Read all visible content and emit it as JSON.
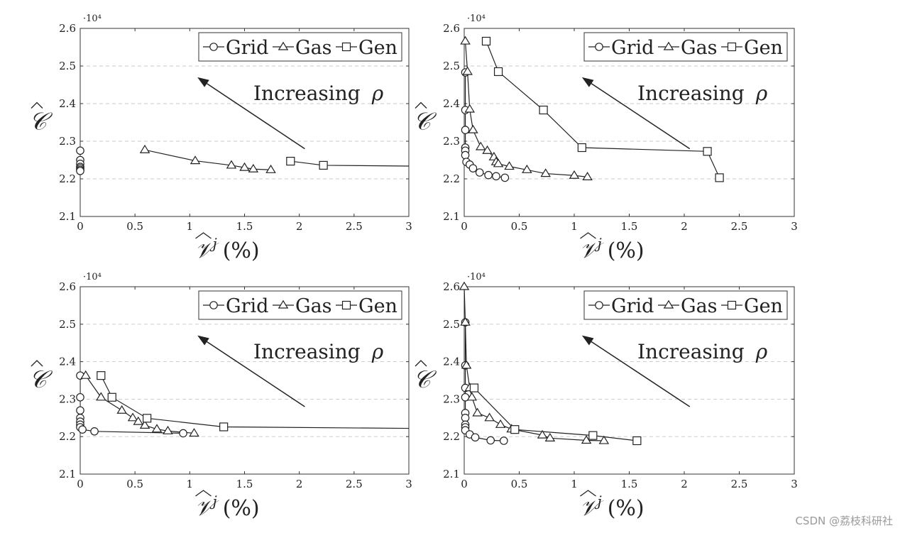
{
  "chart_data": [
    {
      "type": "line",
      "xlim": [
        0,
        3
      ],
      "ylim": [
        2.1,
        2.6
      ],
      "xticks": [
        "0",
        "0.5",
        "1",
        "1.5",
        "2",
        "2.5",
        "3"
      ],
      "yticks": [
        "2.1",
        "2.2",
        "2.3",
        "2.4",
        "2.5",
        "2.6"
      ],
      "ymult": "·10⁴",
      "ylabel": "𝒞",
      "xlabel_sym": "𝒱",
      "xlabel_sup": "j",
      "xlabel_unit": "(%)",
      "grid": "horizontal-dashed",
      "legend": [
        {
          "name": "Grid",
          "marker": "circle"
        },
        {
          "name": "Gas",
          "marker": "triangle"
        },
        {
          "name": "Gen",
          "marker": "square"
        }
      ],
      "annotation": {
        "text": "Increasing",
        "symbol": "ρ",
        "arrow_from": [
          2.05,
          2.28
        ],
        "arrow_to": [
          1.07,
          2.47
        ]
      },
      "series": [
        {
          "name": "Grid",
          "marker": "circle",
          "line": false,
          "points": [
            [
              0,
              2.275
            ],
            [
              0,
              2.25
            ],
            [
              0,
              2.24
            ],
            [
              0,
              2.232
            ],
            [
              0,
              2.228
            ],
            [
              0,
              2.224
            ],
            [
              0,
              2.221
            ]
          ]
        },
        {
          "name": "Gas",
          "marker": "triangle",
          "line": true,
          "points": [
            [
              0.59,
              2.277
            ],
            [
              1.05,
              2.248
            ],
            [
              1.38,
              2.236
            ],
            [
              1.5,
              2.23
            ],
            [
              1.58,
              2.226
            ],
            [
              1.74,
              2.224
            ]
          ]
        },
        {
          "name": "Gen",
          "marker": "square",
          "line": true,
          "points": [
            [
              1.92,
              2.247
            ],
            [
              2.22,
              2.236
            ],
            [
              3.0,
              2.234
            ]
          ],
          "marker_count": 2
        }
      ]
    },
    {
      "type": "line",
      "xlim": [
        0,
        3
      ],
      "ylim": [
        2.1,
        2.6
      ],
      "xticks": [
        "0",
        "0.5",
        "1",
        "1.5",
        "2",
        "2.5",
        "3"
      ],
      "yticks": [
        "2.1",
        "2.2",
        "2.3",
        "2.4",
        "2.5",
        "2.6"
      ],
      "ymult": "·10⁴",
      "ylabel": "𝒞",
      "xlabel_sym": "𝒱",
      "xlabel_sup": "j",
      "xlabel_unit": "(%)",
      "grid": "horizontal-dashed",
      "legend": [
        {
          "name": "Grid",
          "marker": "circle"
        },
        {
          "name": "Gas",
          "marker": "triangle"
        },
        {
          "name": "Gen",
          "marker": "square"
        }
      ],
      "annotation": {
        "text": "Increasing",
        "symbol": "ρ",
        "arrow_from": [
          2.05,
          2.28
        ],
        "arrow_to": [
          1.07,
          2.47
        ]
      },
      "series": [
        {
          "name": "Grid",
          "marker": "circle",
          "line": true,
          "points": [
            [
              0.01,
              2.483
            ],
            [
              0.01,
              2.383
            ],
            [
              0.01,
              2.33
            ],
            [
              0.01,
              2.283
            ],
            [
              0.01,
              2.275
            ],
            [
              0.01,
              2.263
            ],
            [
              0.02,
              2.245
            ],
            [
              0.05,
              2.238
            ],
            [
              0.08,
              2.228
            ],
            [
              0.14,
              2.217
            ],
            [
              0.22,
              2.21
            ],
            [
              0.29,
              2.207
            ],
            [
              0.37,
              2.203
            ]
          ]
        },
        {
          "name": "Gas",
          "marker": "triangle",
          "line": true,
          "points": [
            [
              0.01,
              2.566
            ],
            [
              0.03,
              2.485
            ],
            [
              0.05,
              2.385
            ],
            [
              0.08,
              2.33
            ],
            [
              0.15,
              2.285
            ],
            [
              0.21,
              2.275
            ],
            [
              0.27,
              2.258
            ],
            [
              0.29,
              2.245
            ],
            [
              0.31,
              2.24
            ],
            [
              0.41,
              2.233
            ],
            [
              0.57,
              2.224
            ],
            [
              0.74,
              2.214
            ],
            [
              1.0,
              2.209
            ],
            [
              1.12,
              2.205
            ]
          ]
        },
        {
          "name": "Gen",
          "marker": "square",
          "line": true,
          "points": [
            [
              0.2,
              2.566
            ],
            [
              0.31,
              2.485
            ],
            [
              0.72,
              2.383
            ],
            [
              1.07,
              2.283
            ],
            [
              2.21,
              2.273
            ],
            [
              2.32,
              2.203
            ]
          ]
        }
      ]
    },
    {
      "type": "line",
      "xlim": [
        0,
        3
      ],
      "ylim": [
        2.1,
        2.6
      ],
      "xticks": [
        "0",
        "0.5",
        "1",
        "1.5",
        "2",
        "2.5",
        "3"
      ],
      "yticks": [
        "2.1",
        "2.2",
        "2.3",
        "2.4",
        "2.5",
        "2.6"
      ],
      "ymult": "·10⁴",
      "ylabel": "𝒞",
      "xlabel_sym": "𝒱",
      "xlabel_sup": "j",
      "xlabel_unit": "(%)",
      "grid": "horizontal-dashed",
      "legend": [
        {
          "name": "Grid",
          "marker": "circle"
        },
        {
          "name": "Gas",
          "marker": "triangle"
        },
        {
          "name": "Gen",
          "marker": "square"
        }
      ],
      "annotation": {
        "text": "Increasing",
        "symbol": "ρ",
        "arrow_from": [
          2.05,
          2.28
        ],
        "arrow_to": [
          1.07,
          2.47
        ]
      },
      "series": [
        {
          "name": "Grid",
          "marker": "circle",
          "line": true,
          "points": [
            [
              0,
              2.363
            ],
            [
              0,
              2.305
            ],
            [
              0,
              2.27
            ],
            [
              0,
              2.25
            ],
            [
              0,
              2.24
            ],
            [
              0,
              2.232
            ],
            [
              0,
              2.225
            ],
            [
              0.02,
              2.219
            ],
            [
              0.13,
              2.214
            ],
            [
              0.94,
              2.209
            ]
          ]
        },
        {
          "name": "Gas",
          "marker": "triangle",
          "line": true,
          "points": [
            [
              0.05,
              2.363
            ],
            [
              0.19,
              2.305
            ],
            [
              0.38,
              2.27
            ],
            [
              0.48,
              2.25
            ],
            [
              0.53,
              2.24
            ],
            [
              0.59,
              2.23
            ],
            [
              0.7,
              2.22
            ],
            [
              0.8,
              2.215
            ],
            [
              1.04,
              2.209
            ]
          ]
        },
        {
          "name": "Gen",
          "marker": "square",
          "line": true,
          "points": [
            [
              0.19,
              2.363
            ],
            [
              0.29,
              2.305
            ],
            [
              0.61,
              2.249
            ],
            [
              1.31,
              2.226
            ],
            [
              3.0,
              2.222
            ]
          ],
          "marker_count": 4
        }
      ]
    },
    {
      "type": "line",
      "xlim": [
        0,
        3
      ],
      "ylim": [
        2.1,
        2.6
      ],
      "xticks": [
        "0",
        "0.5",
        "1",
        "1.5",
        "2",
        "2.5",
        "3"
      ],
      "yticks": [
        "2.1",
        "2.2",
        "2.3",
        "2.4",
        "2.5",
        "2.6"
      ],
      "ymult": "·10⁴",
      "ylabel": "𝒞",
      "xlabel_sym": "𝒱",
      "xlabel_sup": "j",
      "xlabel_unit": "(%)",
      "grid": "horizontal-dashed",
      "legend": [
        {
          "name": "Grid",
          "marker": "circle"
        },
        {
          "name": "Gas",
          "marker": "triangle"
        },
        {
          "name": "Gen",
          "marker": "square"
        }
      ],
      "annotation": {
        "text": "Increasing",
        "symbol": "ρ",
        "arrow_from": [
          2.05,
          2.28
        ],
        "arrow_to": [
          1.07,
          2.47
        ]
      },
      "series": [
        {
          "name": "Grid",
          "marker": "circle",
          "line": true,
          "points": [
            [
              0.01,
              2.505
            ],
            [
              0.01,
              2.39
            ],
            [
              0.01,
              2.33
            ],
            [
              0.01,
              2.305
            ],
            [
              0.01,
              2.263
            ],
            [
              0.01,
              2.25
            ],
            [
              0.01,
              2.232
            ],
            [
              0.01,
              2.225
            ],
            [
              0.01,
              2.217
            ],
            [
              0.05,
              2.206
            ],
            [
              0.1,
              2.198
            ],
            [
              0.24,
              2.19
            ],
            [
              0.36,
              2.189
            ]
          ]
        },
        {
          "name": "Gas",
          "marker": "triangle",
          "line": true,
          "points": [
            [
              0,
              2.6
            ],
            [
              0.01,
              2.505
            ],
            [
              0.02,
              2.39
            ],
            [
              0.05,
              2.33
            ],
            [
              0.07,
              2.305
            ],
            [
              0.12,
              2.263
            ],
            [
              0.23,
              2.25
            ],
            [
              0.33,
              2.232
            ],
            [
              0.43,
              2.22
            ],
            [
              0.71,
              2.204
            ],
            [
              0.78,
              2.196
            ],
            [
              1.11,
              2.19
            ],
            [
              1.27,
              2.189
            ]
          ]
        },
        {
          "name": "Gen",
          "marker": "square",
          "line": true,
          "points": [
            [
              0.09,
              2.33
            ],
            [
              0.46,
              2.219
            ],
            [
              1.17,
              2.203
            ],
            [
              1.57,
              2.189
            ]
          ]
        }
      ]
    }
  ],
  "watermark": "CSDN @荔枝科研社"
}
